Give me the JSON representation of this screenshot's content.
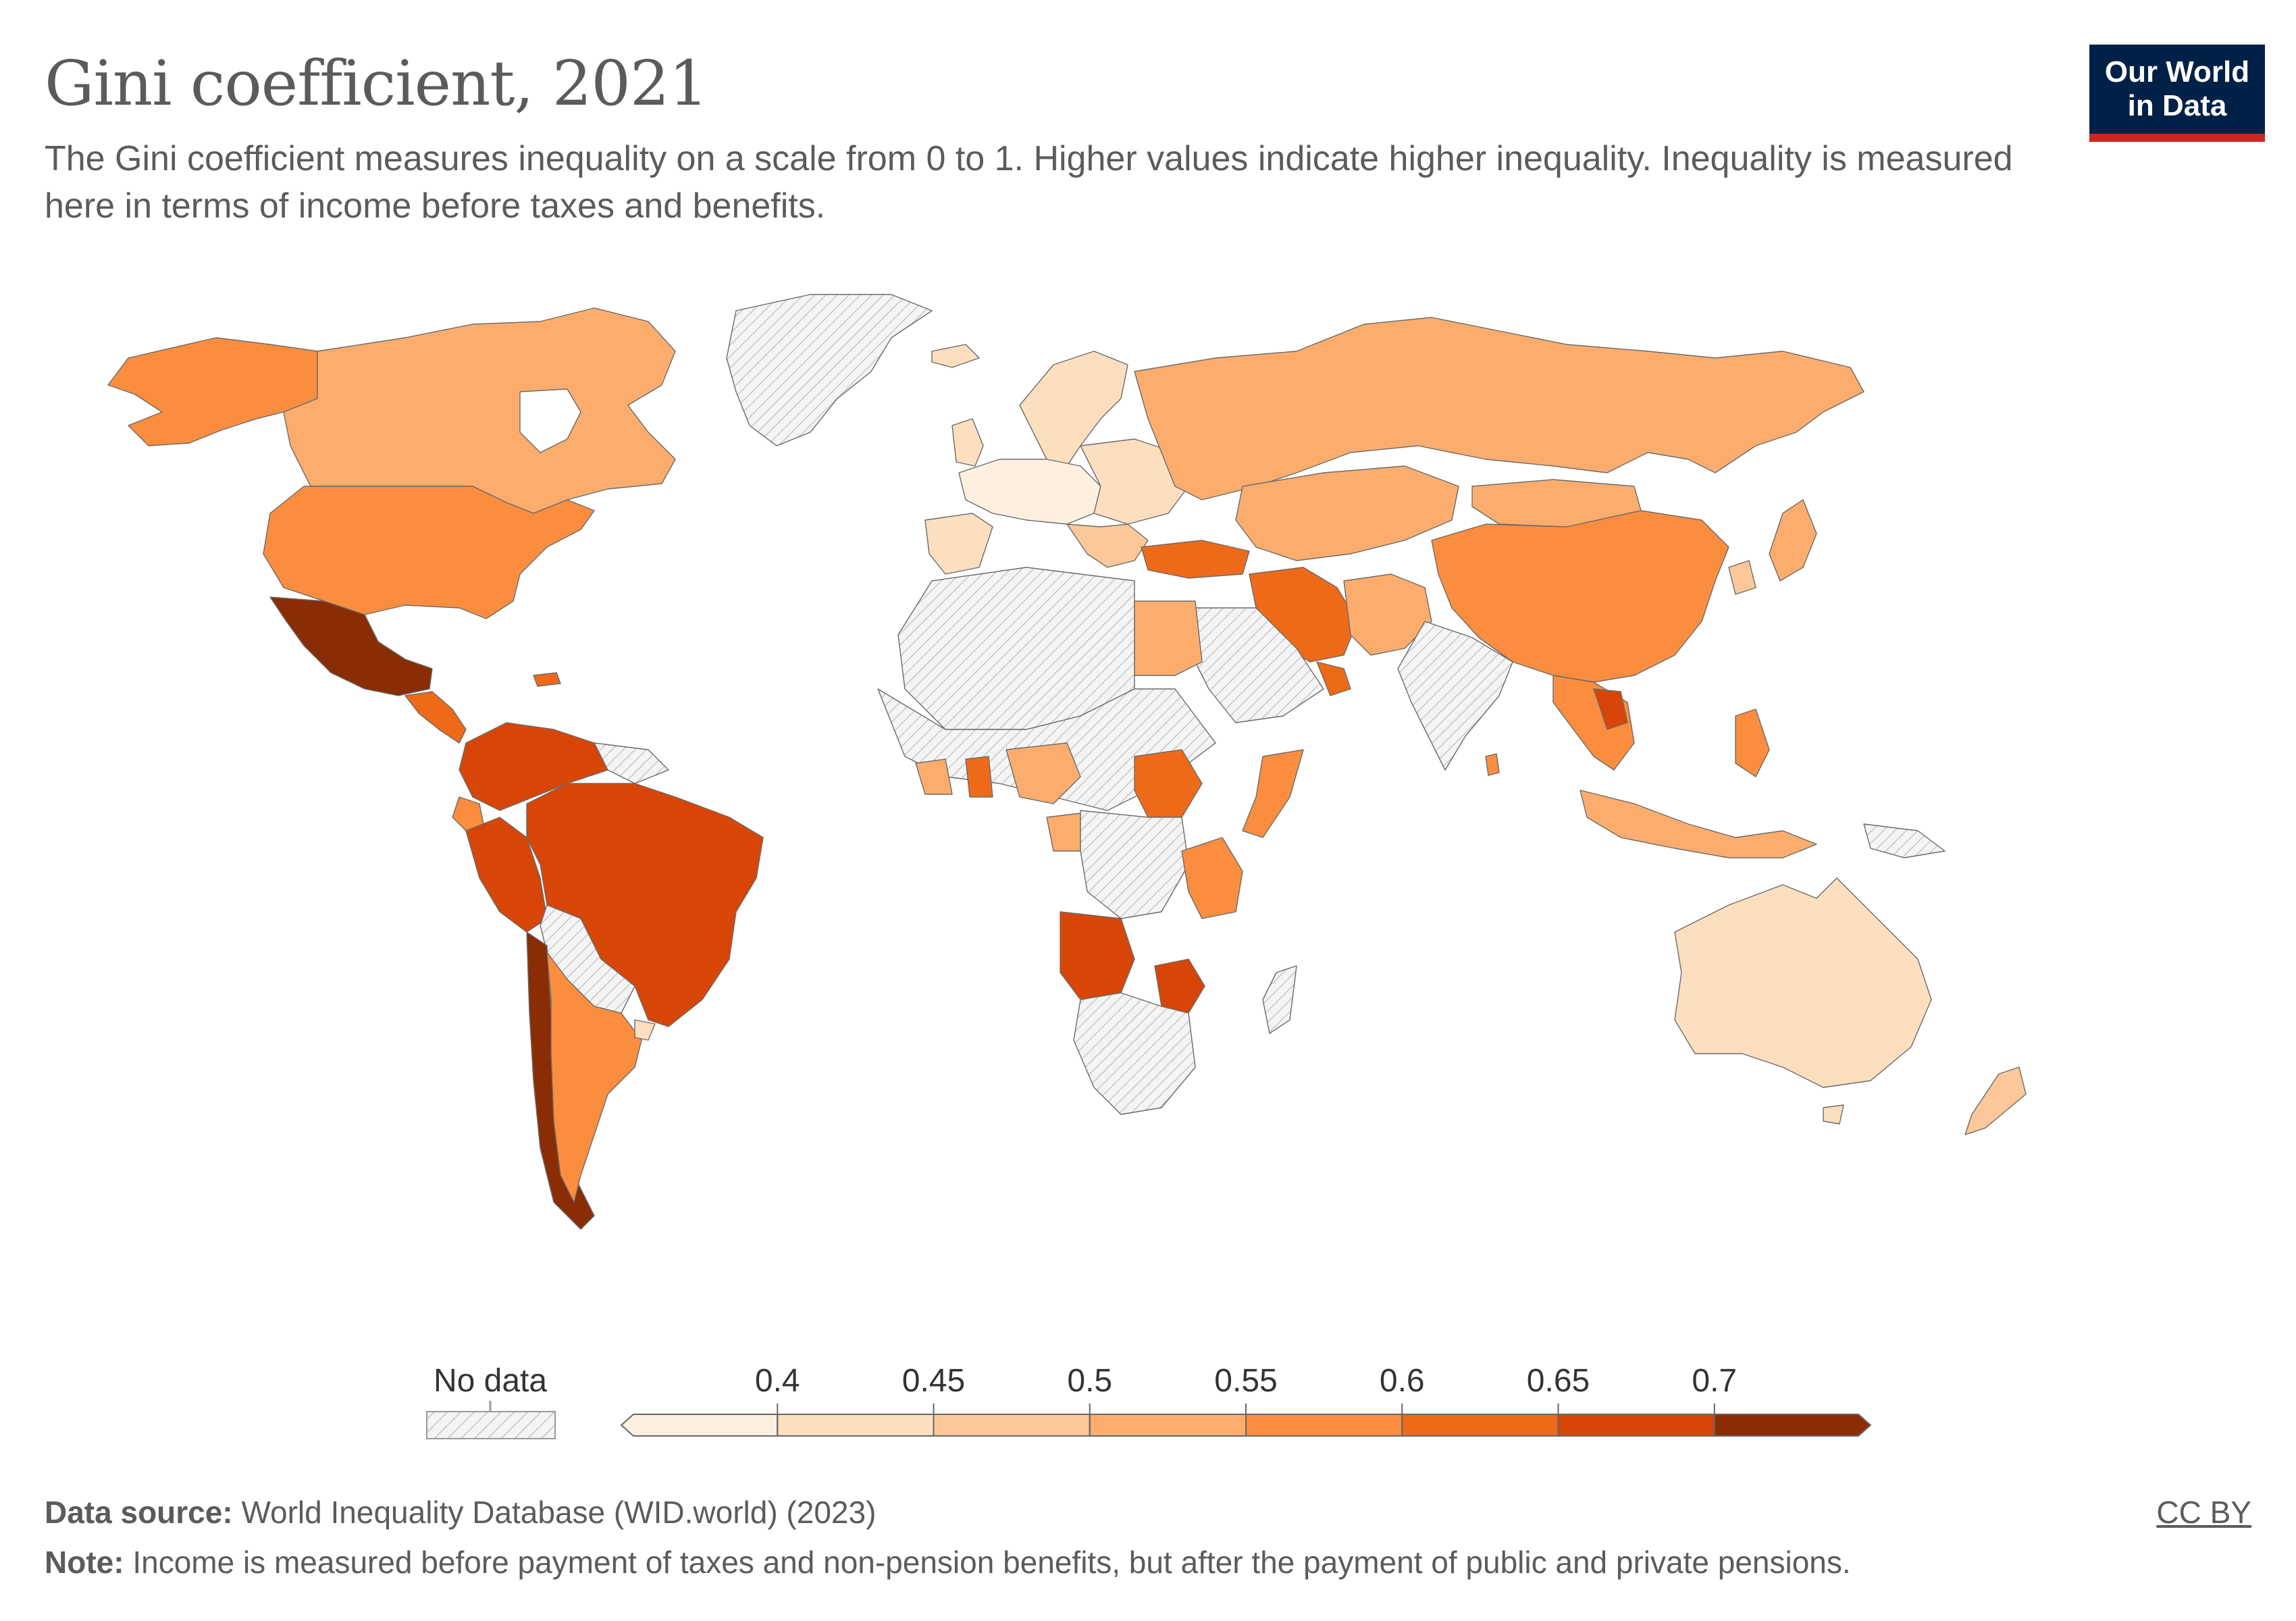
{
  "header": {
    "title": "Gini coefficient, 2021",
    "subtitle": "The Gini coefficient measures inequality on a scale from 0 to 1. Higher values indicate higher inequality. Inequality is measured here in terms of income before taxes and benefits."
  },
  "logo": {
    "line1": "Our World",
    "line2": "in Data",
    "bg": "#002147",
    "accent": "#ce261e"
  },
  "legend": {
    "no_data_label": "No data",
    "ticks": [
      "0.4",
      "0.45",
      "0.5",
      "0.55",
      "0.6",
      "0.65",
      "0.7"
    ],
    "bins": [
      {
        "min": 0.35,
        "max": 0.4,
        "color": "#fef0e1"
      },
      {
        "min": 0.4,
        "max": 0.45,
        "color": "#fddfc0"
      },
      {
        "min": 0.45,
        "max": 0.5,
        "color": "#fcc899"
      },
      {
        "min": 0.5,
        "max": 0.55,
        "color": "#fcad6d"
      },
      {
        "min": 0.55,
        "max": 0.6,
        "color": "#fb8d3f"
      },
      {
        "min": 0.6,
        "max": 0.65,
        "color": "#ef6a18"
      },
      {
        "min": 0.65,
        "max": 0.7,
        "color": "#d74607"
      },
      {
        "min": 0.7,
        "max": 0.75,
        "color": "#8a2d05"
      }
    ]
  },
  "footer": {
    "source_label": "Data source:",
    "source_text": "World Inequality Database (WID.world) (2023)",
    "note_label": "Note:",
    "note_text": "Income is measured before payment of taxes and non-pension benefits, but after the payment of public and private pensions.",
    "license": "CC BY"
  },
  "map_colors": {
    "no_data_fill": "#ececec",
    "hatch": "#bdbdbd",
    "border": "#666666"
  }
}
